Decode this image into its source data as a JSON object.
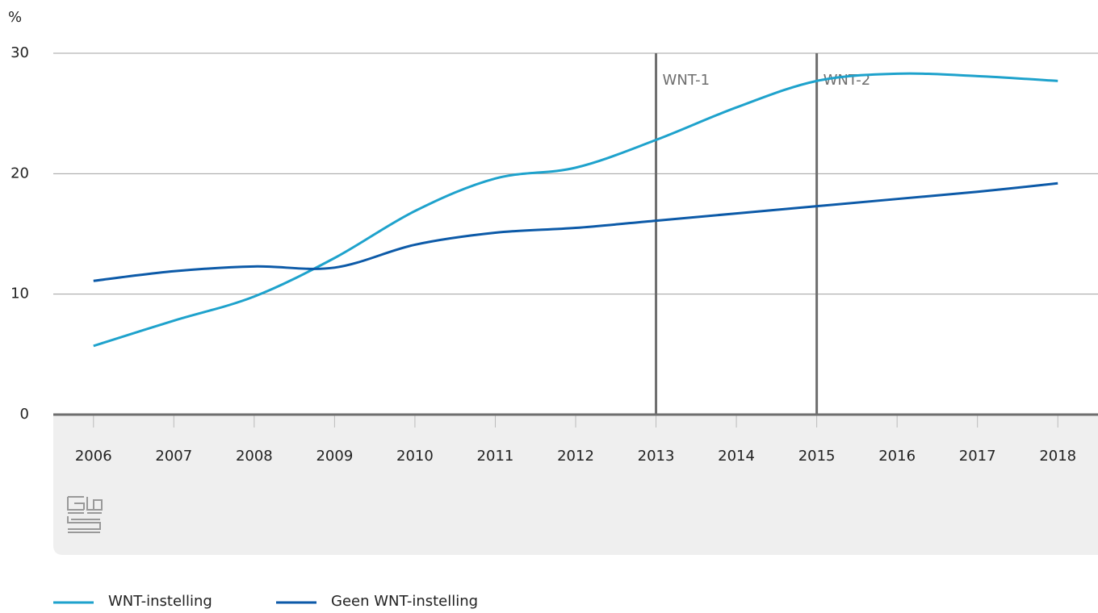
{
  "chart_data": {
    "type": "line",
    "ylabel": "%",
    "categories": [
      "2006",
      "2007",
      "2008",
      "2009",
      "2010",
      "2011",
      "2012",
      "2013",
      "2014",
      "2015",
      "2016",
      "2017",
      "2018"
    ],
    "series": [
      {
        "name": "WNT-instelling",
        "color": "#1ea2cc",
        "values": [
          5.7,
          7.8,
          9.8,
          13.0,
          16.9,
          19.6,
          20.5,
          22.8,
          25.5,
          27.7,
          28.3,
          28.1,
          27.7
        ]
      },
      {
        "name": "Geen WNT-instelling",
        "color": "#0c5aa8",
        "values": [
          11.1,
          11.9,
          12.3,
          12.2,
          14.1,
          15.1,
          15.5,
          16.1,
          16.7,
          17.3,
          17.9,
          18.5,
          19.2
        ]
      }
    ],
    "annotations": [
      {
        "at": "2013",
        "label": "WNT-1"
      },
      {
        "at": "2015",
        "label": "WNT-2"
      }
    ],
    "ylim": [
      0,
      30
    ],
    "yticks": [
      0,
      10,
      20,
      30
    ],
    "grid": true,
    "legend": "bottom"
  }
}
